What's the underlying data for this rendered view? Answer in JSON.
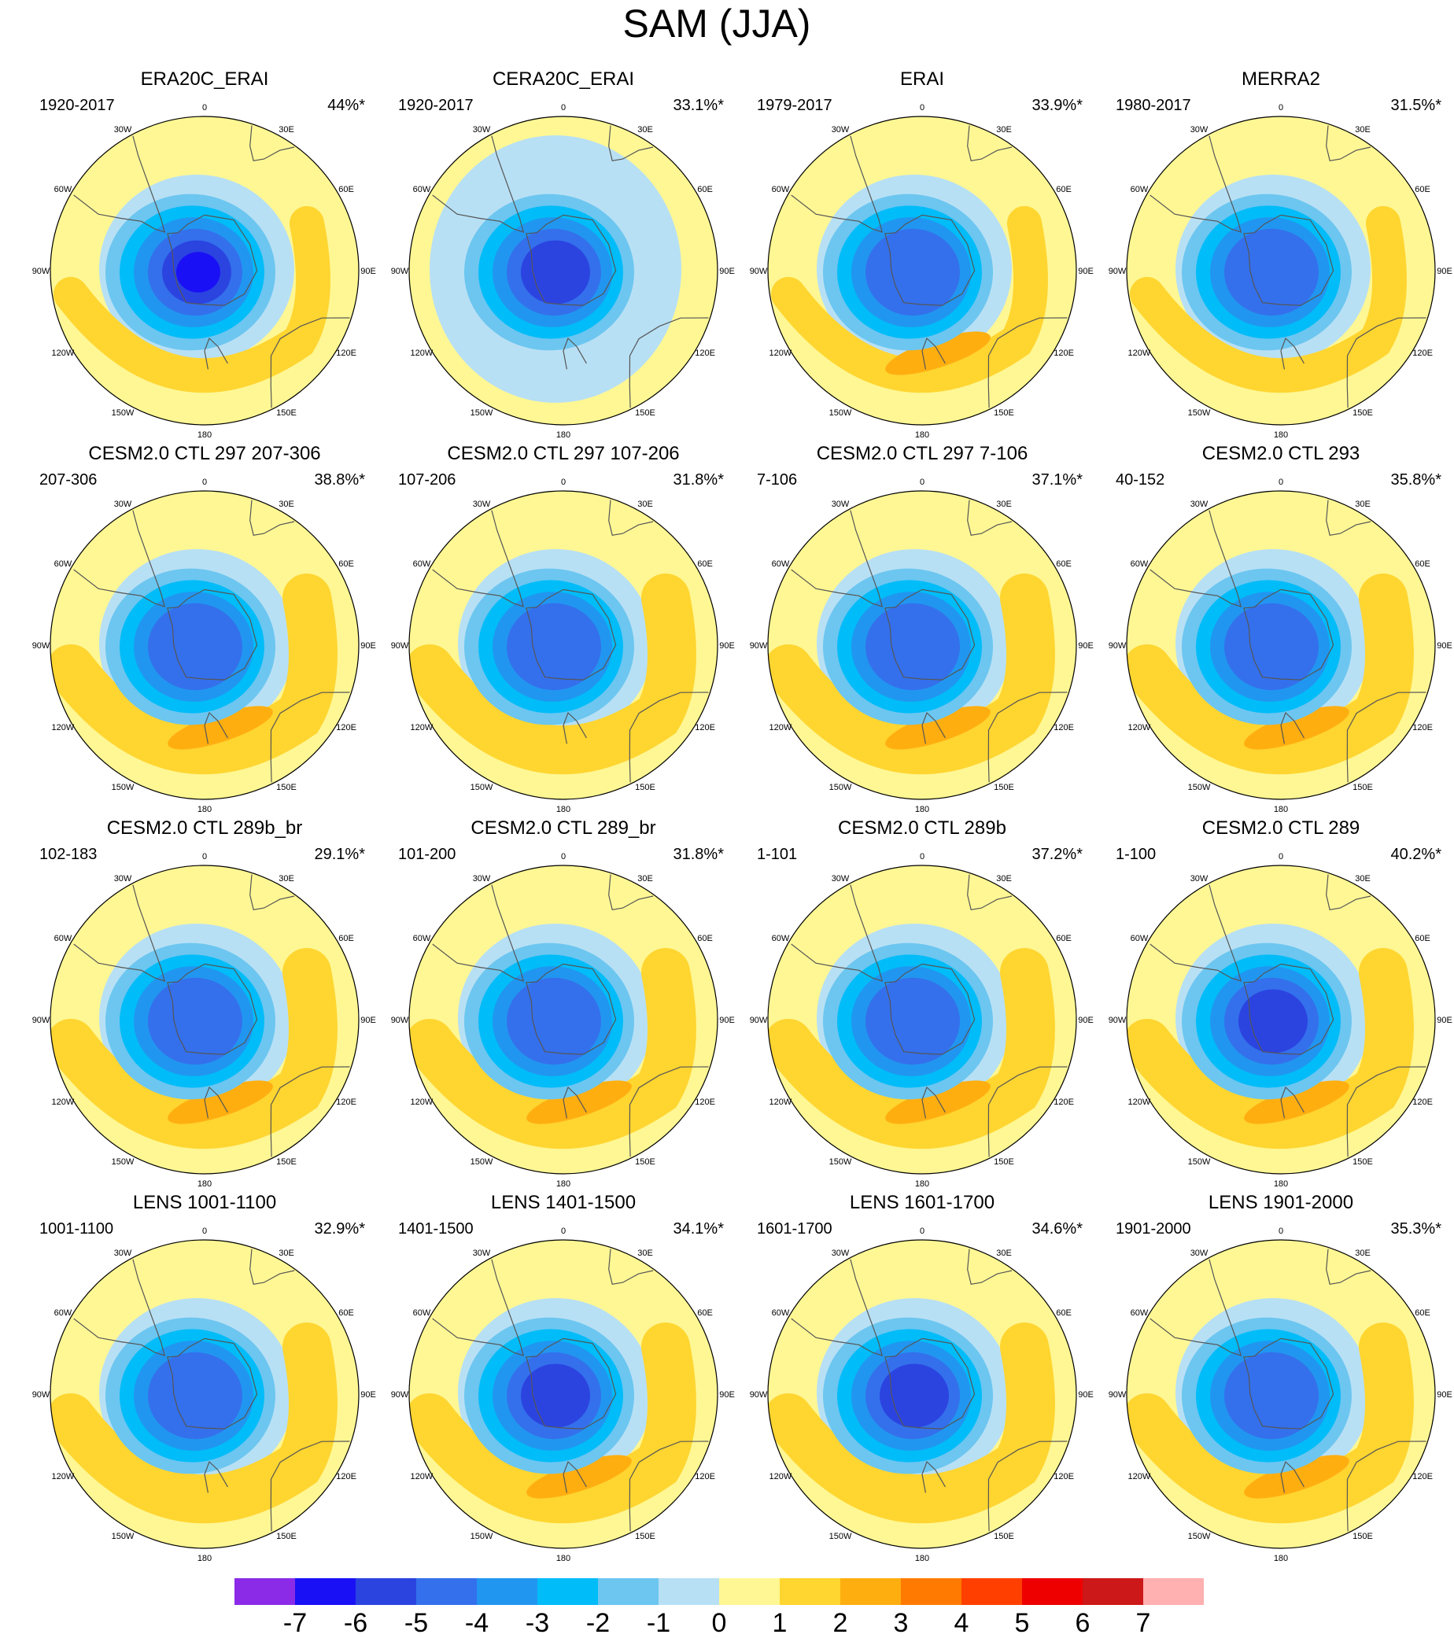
{
  "title": "SAM (JJA)",
  "longitude_labels": [
    "0",
    "30E",
    "60E",
    "90E",
    "120E",
    "150E",
    "180",
    "150W",
    "120W",
    "90W",
    "60W",
    "30W"
  ],
  "panels": [
    {
      "title": "ERA20C_ERAI",
      "period": "1920-2017",
      "variance": "44%*",
      "pattern": {
        "center": -6.5,
        "pos1": 2,
        "pos2": 2,
        "lat": "strong"
      }
    },
    {
      "title": "CERA20C_ERAI",
      "period": "1920-2017",
      "variance": "33.1%*",
      "pattern": {
        "center": -5.5,
        "pos1": 0,
        "pos2": 1,
        "lat": "wide"
      }
    },
    {
      "title": "ERAI",
      "period": "1979-2017",
      "variance": "33.9%*",
      "pattern": {
        "center": -5,
        "pos1": 2,
        "pos2": 3,
        "lat": "ring"
      }
    },
    {
      "title": "MERRA2",
      "period": "1980-2017",
      "variance": "31.5%*",
      "pattern": {
        "center": -5,
        "pos1": 2,
        "pos2": 2.5,
        "lat": "ring"
      }
    },
    {
      "title": "CESM2.0 CTL 297 207-306",
      "period": "207-306",
      "variance": "38.8%*",
      "pattern": {
        "center": -5,
        "pos1": 2,
        "pos2": 3,
        "lat": "arc"
      }
    },
    {
      "title": "CESM2.0 CTL 297 107-206",
      "period": "107-206",
      "variance": "31.8%*",
      "pattern": {
        "center": -4.5,
        "pos1": 2,
        "pos2": 2,
        "lat": "arc"
      }
    },
    {
      "title": "CESM2.0 CTL 297 7-106",
      "period": "7-106",
      "variance": "37.1%*",
      "pattern": {
        "center": -5,
        "pos1": 2,
        "pos2": 3,
        "lat": "arc"
      }
    },
    {
      "title": "CESM2.0 CTL 293",
      "period": "40-152",
      "variance": "35.8%*",
      "pattern": {
        "center": -5,
        "pos1": 2,
        "pos2": 3,
        "lat": "arc"
      }
    },
    {
      "title": "CESM2.0 CTL 289b_br",
      "period": "102-183",
      "variance": "29.1%*",
      "pattern": {
        "center": -4.5,
        "pos1": 2,
        "pos2": 3,
        "lat": "arc"
      }
    },
    {
      "title": "CESM2.0 CTL 289_br",
      "period": "101-200",
      "variance": "31.8%*",
      "pattern": {
        "center": -4.5,
        "pos1": 2,
        "pos2": 3,
        "lat": "arc"
      }
    },
    {
      "title": "CESM2.0 CTL 289b",
      "period": "1-101",
      "variance": "37.2%*",
      "pattern": {
        "center": -5,
        "pos1": 2,
        "pos2": 3,
        "lat": "arc"
      }
    },
    {
      "title": "CESM2.0 CTL 289",
      "period": "1-100",
      "variance": "40.2%*",
      "pattern": {
        "center": -5.5,
        "pos1": 2,
        "pos2": 3,
        "lat": "arc"
      }
    },
    {
      "title": "LENS 1001-1100",
      "period": "1001-1100",
      "variance": "32.9%*",
      "pattern": {
        "center": -5,
        "pos1": 2,
        "pos2": 2,
        "lat": "arc"
      }
    },
    {
      "title": "LENS 1401-1500",
      "period": "1401-1500",
      "variance": "34.1%*",
      "pattern": {
        "center": -5.5,
        "pos1": 2,
        "pos2": 3,
        "lat": "arc"
      }
    },
    {
      "title": "LENS 1601-1700",
      "period": "1601-1700",
      "variance": "34.6%*",
      "pattern": {
        "center": -5.5,
        "pos1": 2,
        "pos2": 2,
        "lat": "arc"
      }
    },
    {
      "title": "LENS 1901-2000",
      "period": "1901-2000",
      "variance": "35.3%*",
      "pattern": {
        "center": -4.5,
        "pos1": 2,
        "pos2": 3,
        "lat": "arc"
      }
    }
  ],
  "colorbar": {
    "colors": [
      "#8b2be8",
      "#1a10f5",
      "#2b44e0",
      "#3470ec",
      "#2196f0",
      "#00bcf8",
      "#6cc6f0",
      "#b8e0f4",
      "#fff794",
      "#ffd530",
      "#ffae10",
      "#ff7a00",
      "#ff3f00",
      "#ee0000",
      "#cc1818",
      "#ffb0b0"
    ],
    "labels": [
      "-7",
      "-6",
      "-5",
      "-4",
      "-3",
      "-2",
      "-1",
      "0",
      "1",
      "2",
      "3",
      "4",
      "5",
      "6",
      "7"
    ]
  }
}
